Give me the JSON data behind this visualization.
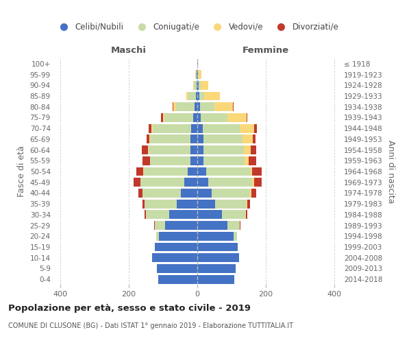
{
  "age_groups": [
    "0-4",
    "5-9",
    "10-14",
    "15-19",
    "20-24",
    "25-29",
    "30-34",
    "35-39",
    "40-44",
    "45-49",
    "50-54",
    "55-59",
    "60-64",
    "65-69",
    "70-74",
    "75-79",
    "80-84",
    "85-89",
    "90-94",
    "95-99",
    "100+"
  ],
  "birth_years": [
    "2014-2018",
    "2009-2013",
    "2004-2008",
    "1999-2003",
    "1994-1998",
    "1989-1993",
    "1984-1988",
    "1979-1983",
    "1974-1978",
    "1969-1973",
    "1964-1968",
    "1959-1963",
    "1954-1958",
    "1949-1953",
    "1944-1948",
    "1939-1943",
    "1934-1938",
    "1929-1933",
    "1924-1928",
    "1919-1923",
    "≤ 1918"
  ],
  "males": {
    "celibi": [
      115,
      118,
      132,
      124,
      112,
      95,
      82,
      60,
      48,
      38,
      28,
      20,
      20,
      20,
      18,
      12,
      8,
      4,
      2,
      2,
      1
    ],
    "coniugati": [
      0,
      0,
      0,
      0,
      8,
      30,
      68,
      95,
      112,
      128,
      128,
      118,
      122,
      118,
      112,
      85,
      55,
      22,
      8,
      3,
      0
    ],
    "vedovi": [
      0,
      0,
      0,
      0,
      0,
      0,
      0,
      0,
      1,
      1,
      2,
      1,
      2,
      3,
      5,
      4,
      8,
      7,
      3,
      1,
      0
    ],
    "divorziati": [
      0,
      0,
      0,
      0,
      1,
      2,
      5,
      5,
      12,
      20,
      20,
      22,
      18,
      8,
      8,
      5,
      2,
      0,
      0,
      0,
      0
    ]
  },
  "females": {
    "nubili": [
      108,
      112,
      122,
      118,
      105,
      88,
      72,
      52,
      42,
      32,
      25,
      18,
      18,
      17,
      15,
      10,
      7,
      5,
      4,
      2,
      1
    ],
    "coniugate": [
      0,
      0,
      0,
      0,
      10,
      35,
      68,
      92,
      112,
      128,
      130,
      120,
      118,
      115,
      108,
      78,
      42,
      15,
      6,
      2,
      0
    ],
    "vedove": [
      0,
      0,
      0,
      0,
      0,
      0,
      1,
      2,
      3,
      5,
      5,
      12,
      20,
      30,
      42,
      55,
      55,
      45,
      22,
      8,
      1
    ],
    "divorziate": [
      0,
      0,
      0,
      0,
      1,
      3,
      5,
      8,
      15,
      22,
      28,
      22,
      15,
      8,
      8,
      2,
      2,
      0,
      0,
      0,
      0
    ]
  },
  "colors": {
    "celibi_nubili": "#4472c4",
    "coniugati": "#c8dca8",
    "vedovi": "#fad87a",
    "divorziati": "#c0392b"
  },
  "xlim": 420,
  "title": "Popolazione per età, sesso e stato civile - 2019",
  "subtitle": "COMUNE DI CLUSONE (BG) - Dati ISTAT 1° gennaio 2019 - Elaborazione TUTTITALIA.IT",
  "legend_labels": [
    "Celibi/Nubili",
    "Coniugati/e",
    "Vedovi/e",
    "Divorziati/e"
  ],
  "ylabel_left": "Fasce di età",
  "ylabel_right": "Anni di nascita"
}
